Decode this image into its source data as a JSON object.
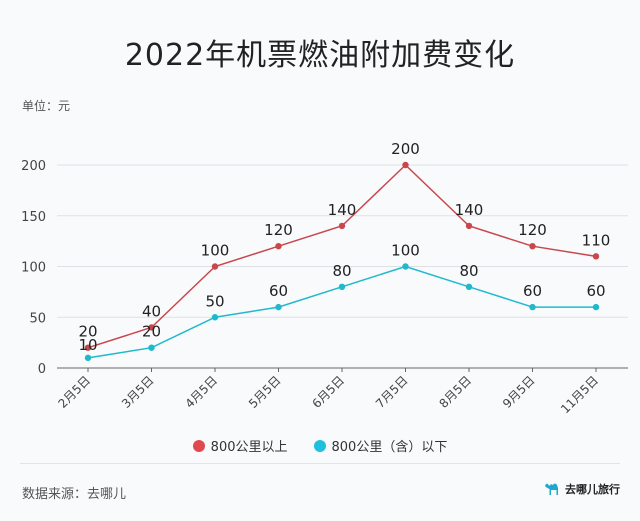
{
  "chart_data": {
    "type": "line",
    "title": "2022年机票燃油附加费变化",
    "unit_label": "单位：元",
    "categories": [
      "2月5日",
      "3月5日",
      "4月5日",
      "5月5日",
      "6月5日",
      "7月5日",
      "8月5日",
      "9月5日",
      "11月5日"
    ],
    "series": [
      {
        "name": "800公里以上",
        "color": "#c8474c",
        "values": [
          20,
          40,
          100,
          120,
          140,
          200,
          140,
          120,
          110
        ]
      },
      {
        "name": "800公里（含）以下",
        "color": "#1fb9cd",
        "values": [
          10,
          20,
          50,
          60,
          80,
          100,
          80,
          60,
          60
        ]
      }
    ],
    "ylim": [
      0,
      200
    ],
    "yticks": [
      0,
      50,
      100,
      150,
      200
    ],
    "grid": true,
    "legend_position": "bottom"
  },
  "footer": {
    "source": "数据来源：去哪儿",
    "logo_text": "去哪儿旅行"
  }
}
